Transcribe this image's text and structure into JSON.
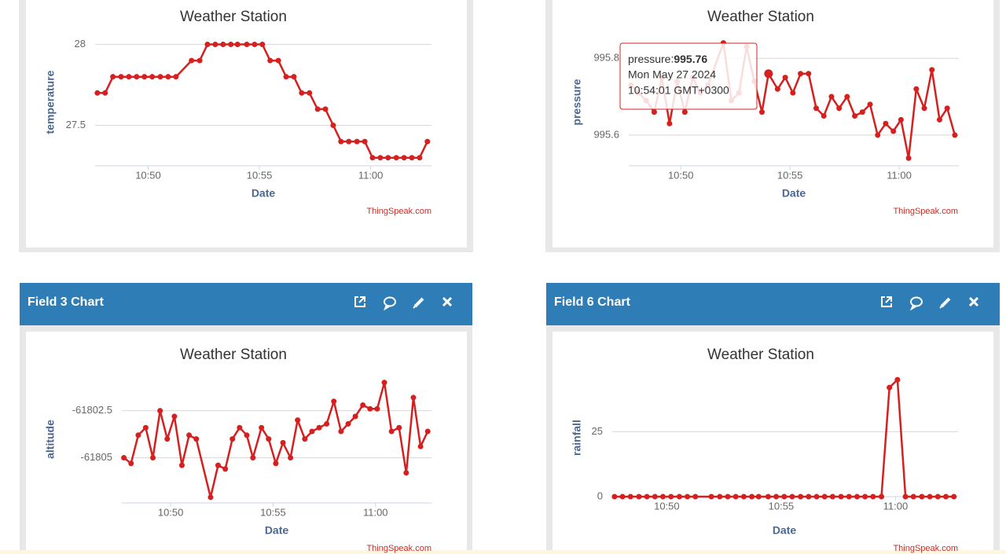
{
  "panels": [
    {
      "title": "Field 3 Chart"
    },
    {
      "title": "Field 6 Chart"
    }
  ],
  "tooltip": {
    "date": "Mon May 27 2024",
    "time": "10:54:01 GMT+0300"
  },
  "chart_data": [
    {
      "type": "line",
      "title": "Weather Station",
      "xlabel": "Date",
      "ylabel": "temperature",
      "credit": "ThingSpeak.com",
      "color": "#d62020",
      "x": [
        "10:47:43",
        "10:48:04",
        "10:48:25",
        "10:48:47",
        "10:49:08",
        "10:49:29",
        "10:49:50",
        "10:50:11",
        "10:50:33",
        "10:50:54",
        "10:51:15",
        "10:51:57",
        "10:52:19",
        "10:52:40",
        "10:53:01",
        "10:53:22",
        "10:53:43",
        "10:54:01",
        "10:54:26",
        "10:54:47",
        "10:55:08",
        "10:55:29",
        "10:55:51",
        "10:56:12",
        "10:56:33",
        "10:56:54",
        "10:57:15",
        "10:57:37",
        "10:57:58",
        "10:58:19",
        "10:58:40",
        "10:59:01",
        "10:59:23",
        "10:59:44",
        "11:00:05",
        "11:00:26",
        "11:00:47",
        "11:01:09",
        "11:01:30",
        "11:01:51",
        "11:02:12",
        "11:02:33"
      ],
      "values": [
        27.7,
        27.7,
        27.8,
        27.8,
        27.8,
        27.8,
        27.8,
        27.8,
        27.8,
        27.8,
        27.8,
        27.9,
        27.9,
        28,
        28,
        28,
        28,
        28,
        28,
        28,
        28,
        27.9,
        27.9,
        27.8,
        27.8,
        27.7,
        27.7,
        27.6,
        27.6,
        27.5,
        27.4,
        27.4,
        27.4,
        27.4,
        27.3,
        27.3,
        27.3,
        27.3,
        27.3,
        27.3,
        27.3,
        27.4
      ],
      "xlim": [
        "10:47:37",
        "11:02:44"
      ],
      "xticks": [
        "10:50",
        "10:55",
        "11:00"
      ],
      "ylim": [
        27.25,
        28.08
      ],
      "yticks": [
        27.5,
        28
      ],
      "grid": true
    },
    {
      "type": "line",
      "title": "Weather Station",
      "xlabel": "Date",
      "ylabel": "pressure",
      "credit": "ThingSpeak.com",
      "color": "#d62020",
      "x": [
        "10:47:43",
        "10:48:04",
        "10:48:25",
        "10:48:47",
        "10:49:08",
        "10:49:29",
        "10:49:50",
        "10:50:11",
        "10:50:33",
        "10:50:54",
        "10:51:15",
        "10:51:57",
        "10:52:19",
        "10:52:40",
        "10:53:01",
        "10:53:22",
        "10:53:43",
        "10:54:01",
        "10:54:26",
        "10:54:47",
        "10:55:08",
        "10:55:29",
        "10:55:51",
        "10:56:12",
        "10:56:33",
        "10:56:54",
        "10:57:15",
        "10:57:37",
        "10:57:58",
        "10:58:19",
        "10:58:40",
        "10:59:01",
        "10:59:23",
        "10:59:44",
        "11:00:05",
        "11:00:26",
        "11:00:47",
        "11:01:09",
        "11:01:30",
        "11:01:51",
        "11:02:12",
        "11:02:33"
      ],
      "values": [
        995.73,
        995.71,
        995.69,
        995.66,
        995.75,
        995.63,
        995.74,
        995.66,
        995.75,
        995.71,
        995.73,
        995.84,
        995.69,
        995.71,
        995.83,
        995.74,
        995.66,
        995.76,
        995.72,
        995.75,
        995.71,
        995.76,
        995.76,
        995.67,
        995.65,
        995.7,
        995.67,
        995.7,
        995.65,
        995.66,
        995.68,
        995.6,
        995.63,
        995.61,
        995.64,
        995.54,
        995.72,
        995.67,
        995.77,
        995.64,
        995.67,
        995.6
      ],
      "xlim": [
        "10:47:37",
        "11:02:44"
      ],
      "xticks": [
        "10:50",
        "10:55",
        "11:00"
      ],
      "ylim": [
        995.52,
        995.87
      ],
      "yticks": [
        995.6,
        995.8
      ],
      "grid": true
    },
    {
      "type": "line",
      "title": "Weather Station",
      "xlabel": "Date",
      "ylabel": "altitude",
      "credit": "ThingSpeak.com",
      "color": "#d62020",
      "x": [
        "10:47:43",
        "10:48:04",
        "10:48:25",
        "10:48:47",
        "10:49:08",
        "10:49:29",
        "10:49:50",
        "10:50:11",
        "10:50:33",
        "10:50:54",
        "10:51:15",
        "10:51:57",
        "10:52:19",
        "10:52:40",
        "10:53:01",
        "10:53:22",
        "10:53:43",
        "10:54:01",
        "10:54:26",
        "10:54:47",
        "10:55:08",
        "10:55:29",
        "10:55:51",
        "10:56:12",
        "10:56:33",
        "10:56:54",
        "10:57:15",
        "10:57:37",
        "10:57:58",
        "10:58:19",
        "10:58:40",
        "10:59:01",
        "10:59:23",
        "10:59:44",
        "11:00:05",
        "11:00:26",
        "11:00:47",
        "11:01:09",
        "11:01:30",
        "11:01:51",
        "11:02:12",
        "11:02:33"
      ],
      "values": [
        -61805,
        -61805.3,
        -61803.8,
        -61803.4,
        -61805,
        -61802.5,
        -61804,
        -61802.8,
        -61805.4,
        -61803.8,
        -61804,
        -61807.1,
        -61805.4,
        -61805.6,
        -61804,
        -61803.4,
        -61803.8,
        -61805,
        -61803.4,
        -61804,
        -61805.3,
        -61804.2,
        -61805,
        -61803,
        -61804,
        -61803.6,
        -61803.4,
        -61803.2,
        -61802,
        -61803.6,
        -61803.2,
        -61802.8,
        -61802.2,
        -61802.4,
        -61802.4,
        -61801,
        -61803.6,
        -61803.4,
        -61805.8,
        -61801.8,
        -61804.4,
        -61803.6
      ],
      "xlim": [
        "10:47:37",
        "11:02:44"
      ],
      "xticks": [
        "10:50",
        "10:55",
        "11:00"
      ],
      "ylim": [
        -61807.4,
        -61800.3
      ],
      "yticks": [
        -61805,
        -61802.5
      ],
      "grid": true
    },
    {
      "type": "line",
      "title": "Weather Station",
      "xlabel": "Date",
      "ylabel": "rainfall",
      "credit": "ThingSpeak.com",
      "color": "#d62020",
      "x": [
        "10:47:43",
        "10:48:04",
        "10:48:25",
        "10:48:47",
        "10:49:08",
        "10:49:29",
        "10:49:50",
        "10:50:11",
        "10:50:33",
        "10:50:54",
        "10:51:15",
        "10:51:57",
        "10:52:19",
        "10:52:40",
        "10:53:01",
        "10:53:22",
        "10:53:43",
        "10:54:01",
        "10:54:26",
        "10:54:47",
        "10:55:08",
        "10:55:29",
        "10:55:51",
        "10:56:12",
        "10:56:33",
        "10:56:54",
        "10:57:15",
        "10:57:37",
        "10:57:58",
        "10:58:19",
        "10:58:40",
        "10:59:01",
        "10:59:23",
        "10:59:44",
        "11:00:05",
        "11:00:26",
        "11:00:47",
        "11:01:09",
        "11:01:30",
        "11:01:51",
        "11:02:12",
        "11:02:33"
      ],
      "values": [
        0,
        0,
        0,
        0,
        0,
        0,
        0,
        0,
        0,
        0,
        0,
        0,
        0,
        0,
        0,
        0,
        0,
        0,
        0,
        0,
        0,
        0,
        0,
        0,
        0,
        0,
        0,
        0,
        0,
        0,
        0,
        0,
        0,
        42,
        45,
        0,
        0,
        0,
        0,
        0,
        0,
        0
      ],
      "xlim": [
        "10:47:37",
        "11:02:44"
      ],
      "xticks": [
        "10:50",
        "10:55",
        "11:00"
      ],
      "ylim": [
        0,
        49
      ],
      "yticks": [
        0,
        25
      ],
      "grid": true
    }
  ]
}
